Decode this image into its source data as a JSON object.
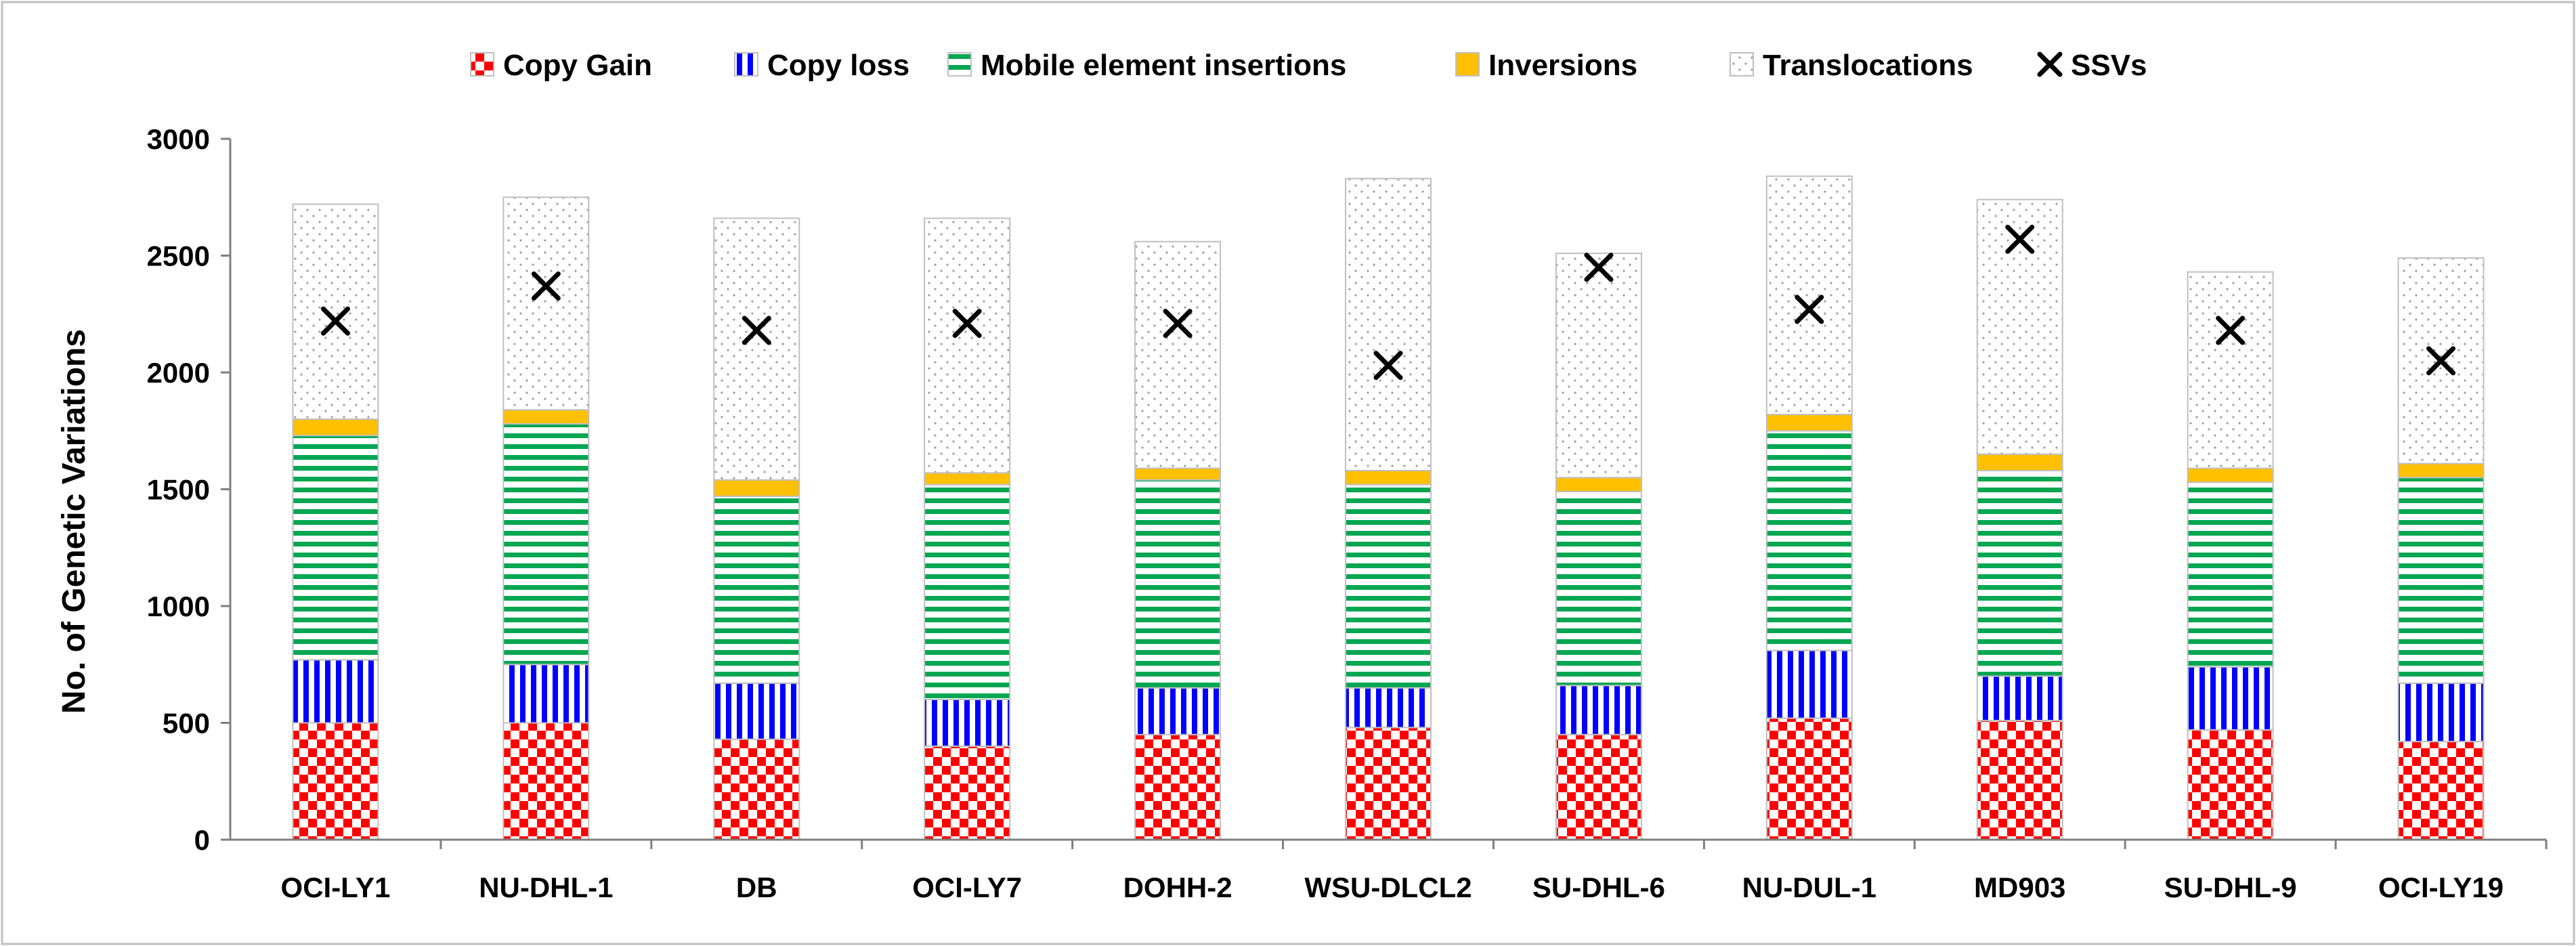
{
  "chart_data": {
    "type": "bar",
    "stacked": true,
    "title": "",
    "xlabel": "",
    "ylabel": "No. of Genetic Variations",
    "ylim": [
      0,
      3000
    ],
    "yticks": [
      0,
      500,
      1000,
      1500,
      2000,
      2500,
      3000
    ],
    "grid": false,
    "legend_position": "top",
    "categories": [
      "OCI-LY1",
      "NU-DHL-1",
      "DB",
      "OCI-LY7",
      "DOHH-2",
      "WSU-DLCL2",
      "SU-DHL-6",
      "NU-DUL-1",
      "MD903",
      "SU-DHL-9",
      "OCI-LY19"
    ],
    "series": [
      {
        "name": "Copy Gain",
        "color": "#ff0000",
        "pattern": "checker",
        "values": [
          500,
          500,
          430,
          400,
          450,
          480,
          450,
          520,
          510,
          470,
          420
        ]
      },
      {
        "name": "Copy loss",
        "color": "#0000ff",
        "pattern": "vertical-stripes",
        "values": [
          270,
          250,
          240,
          200,
          200,
          170,
          210,
          290,
          190,
          270,
          250
        ]
      },
      {
        "name": "Mobile element insertions",
        "color": "#00a651",
        "pattern": "horizontal-stripes",
        "values": [
          960,
          1030,
          800,
          920,
          890,
          870,
          830,
          940,
          880,
          790,
          880
        ]
      },
      {
        "name": "Inversions",
        "color": "#ffc000",
        "pattern": "solid",
        "values": [
          70,
          60,
          70,
          50,
          50,
          60,
          60,
          70,
          70,
          60,
          60
        ]
      },
      {
        "name": "Translocations",
        "color": "#d9d9d9",
        "pattern": "dots",
        "values": [
          920,
          910,
          1120,
          1090,
          970,
          1250,
          960,
          1020,
          1090,
          840,
          880
        ]
      }
    ],
    "markers": {
      "name": "SSVs",
      "symbol": "x",
      "values": [
        2220,
        2370,
        2180,
        2210,
        2210,
        2030,
        2450,
        2270,
        2570,
        2180,
        2050
      ]
    }
  }
}
